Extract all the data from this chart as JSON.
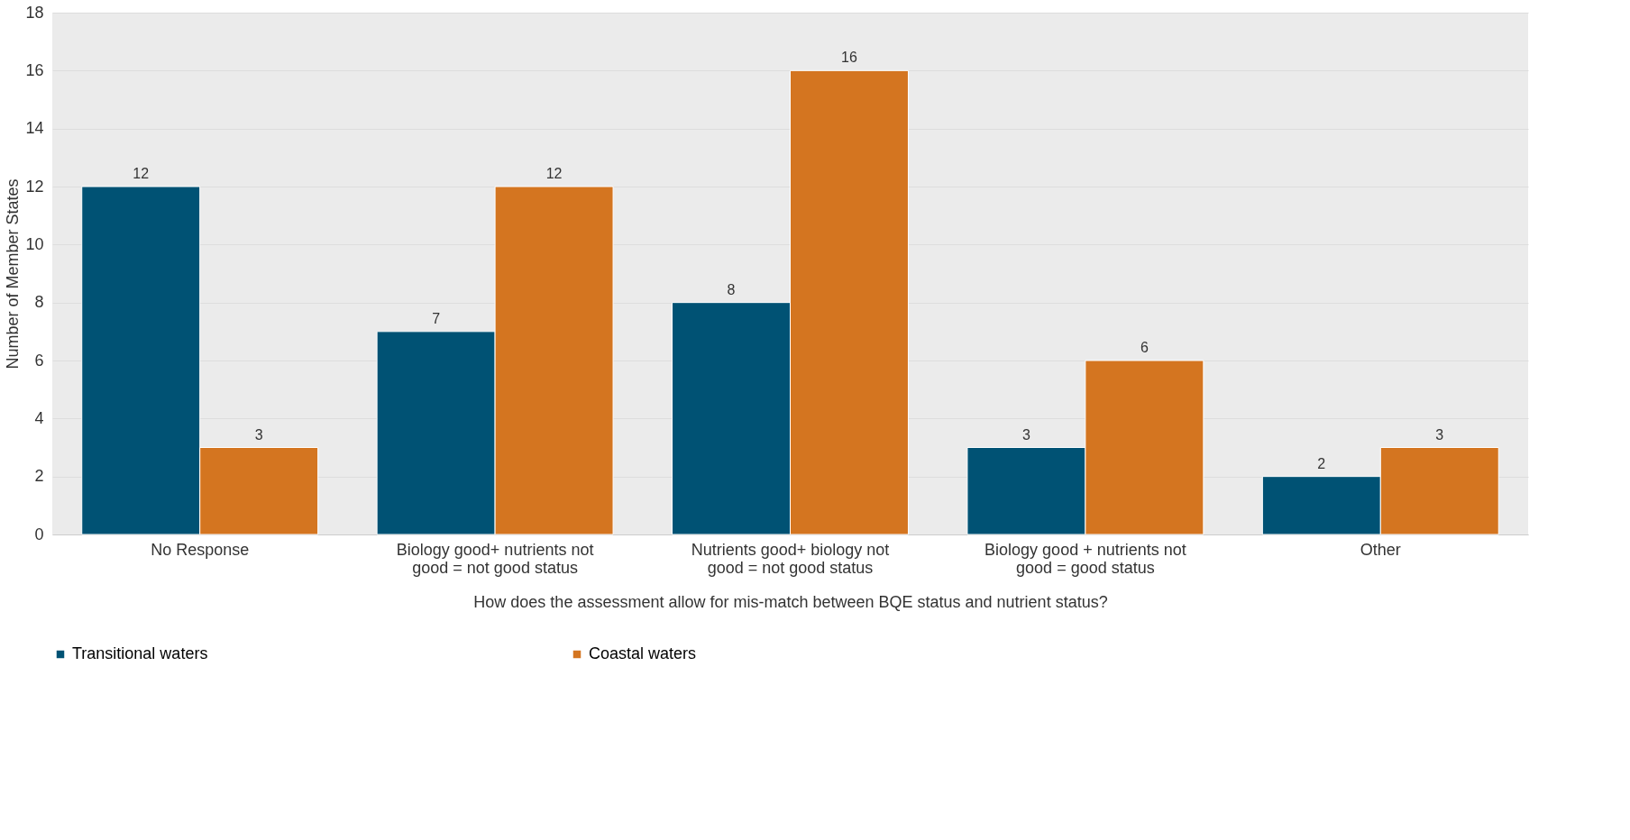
{
  "chart_data": {
    "type": "bar",
    "xlabel": "How does the assessment allow for mis-match between BQE status and nutrient status?",
    "ylabel": "Number of Member States",
    "categories": [
      "No Response",
      "Biology good+ nutrients not good = not good status",
      "Nutrients  good+ biology not good = not good status",
      "Biology good + nutrients not good = good status",
      "Other"
    ],
    "series": [
      {
        "name": "Transitional waters",
        "color": "#005274",
        "values": [
          12,
          7,
          8,
          3,
          2
        ]
      },
      {
        "name": "Coastal waters",
        "color": "#d47520",
        "values": [
          3,
          12,
          16,
          6,
          3
        ]
      }
    ],
    "ylim": [
      0,
      18
    ],
    "yticks": [
      0,
      2,
      4,
      6,
      8,
      10,
      12,
      14,
      16,
      18
    ],
    "grid": "y",
    "legend": "bottom",
    "data_labels": true
  }
}
